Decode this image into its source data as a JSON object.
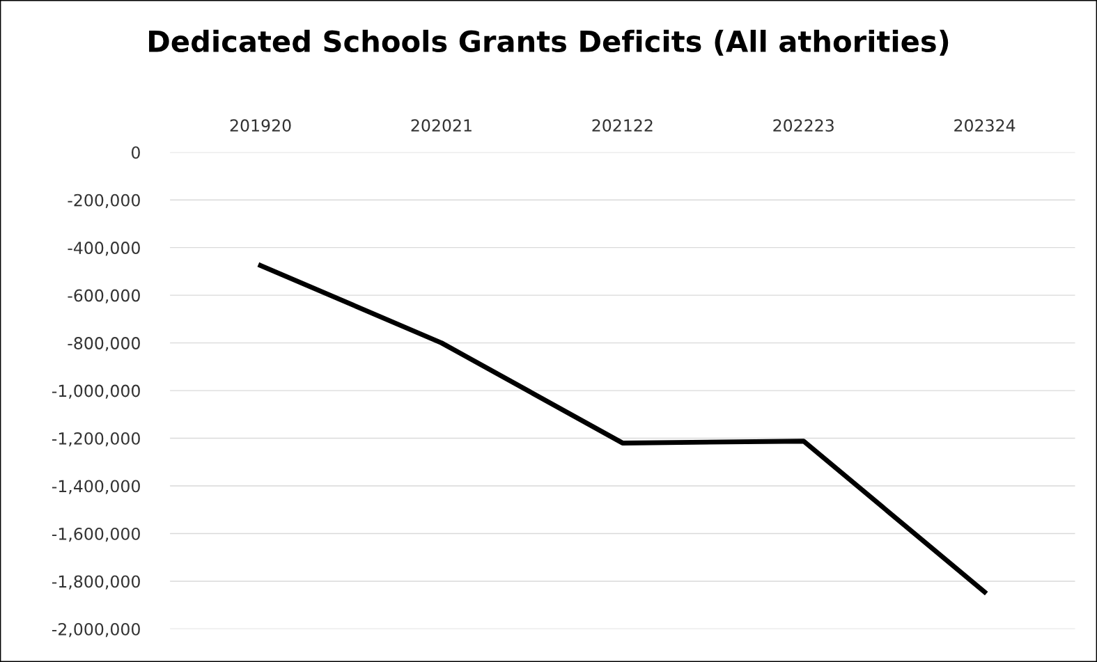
{
  "chart_data": {
    "type": "line",
    "title": "Dedicated Schools Grants Deficits (All athorities)",
    "categories": [
      "201920",
      "202021",
      "202122",
      "202223",
      "202324"
    ],
    "series": [
      {
        "color": "#000000",
        "values": [
          -475000,
          -800000,
          -1220000,
          -1212000,
          -1845000
        ]
      }
    ],
    "ylim": [
      -2000000,
      0
    ],
    "yticks": [
      0,
      {
        "value": -200000,
        "label": "-200,000"
      },
      {
        "value": -400000,
        "label": "-400,000"
      },
      {
        "value": -600000,
        "label": "-600,000"
      },
      {
        "value": -800000,
        "label": "-800,000"
      },
      {
        "value": -1000000,
        "label": "-1,000,000"
      },
      {
        "value": -1200000,
        "label": "-1,200,000"
      },
      {
        "value": -1400000,
        "label": "-1,400,000"
      },
      {
        "value": -1600000,
        "label": "-1,600,000"
      },
      {
        "value": -1800000,
        "label": "-1,800,000"
      },
      {
        "value": -2000000,
        "label": "-2,000,000"
      }
    ],
    "grid": "y",
    "legend": false,
    "marker": "none",
    "line_style": "solid"
  }
}
